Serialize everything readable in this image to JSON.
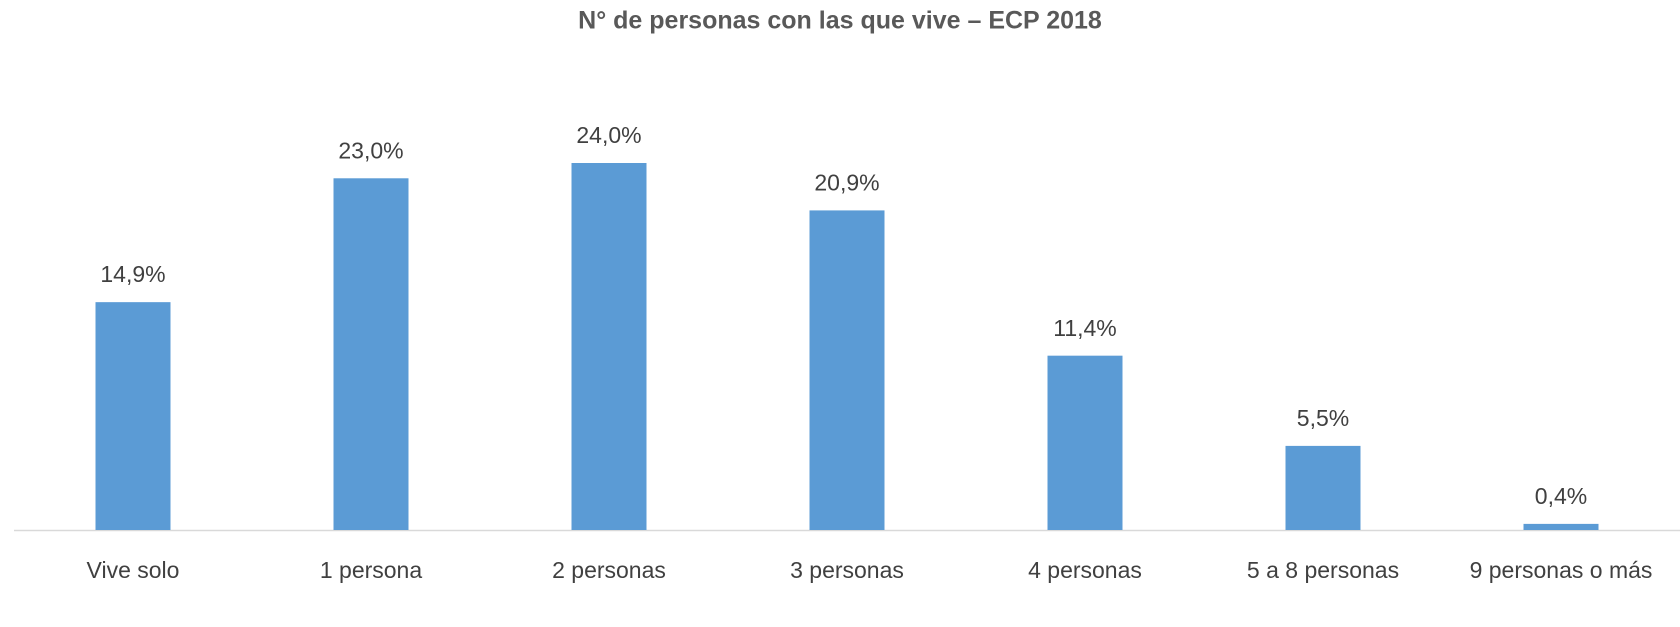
{
  "chart_data": {
    "type": "bar",
    "title": "N° de personas con las que vive – ECP 2018",
    "categories": [
      "Vive solo",
      "1 persona",
      "2 personas",
      "3 personas",
      "4 personas",
      "5 a 8 personas",
      "9 personas o más"
    ],
    "values": [
      14.9,
      23.0,
      24.0,
      20.9,
      11.4,
      5.5,
      0.4
    ],
    "value_labels": [
      "14,9%",
      "23,0%",
      "24,0%",
      "20,9%",
      "11,4%",
      "5,5%",
      "0,4%"
    ],
    "color": "#5b9bd5"
  }
}
